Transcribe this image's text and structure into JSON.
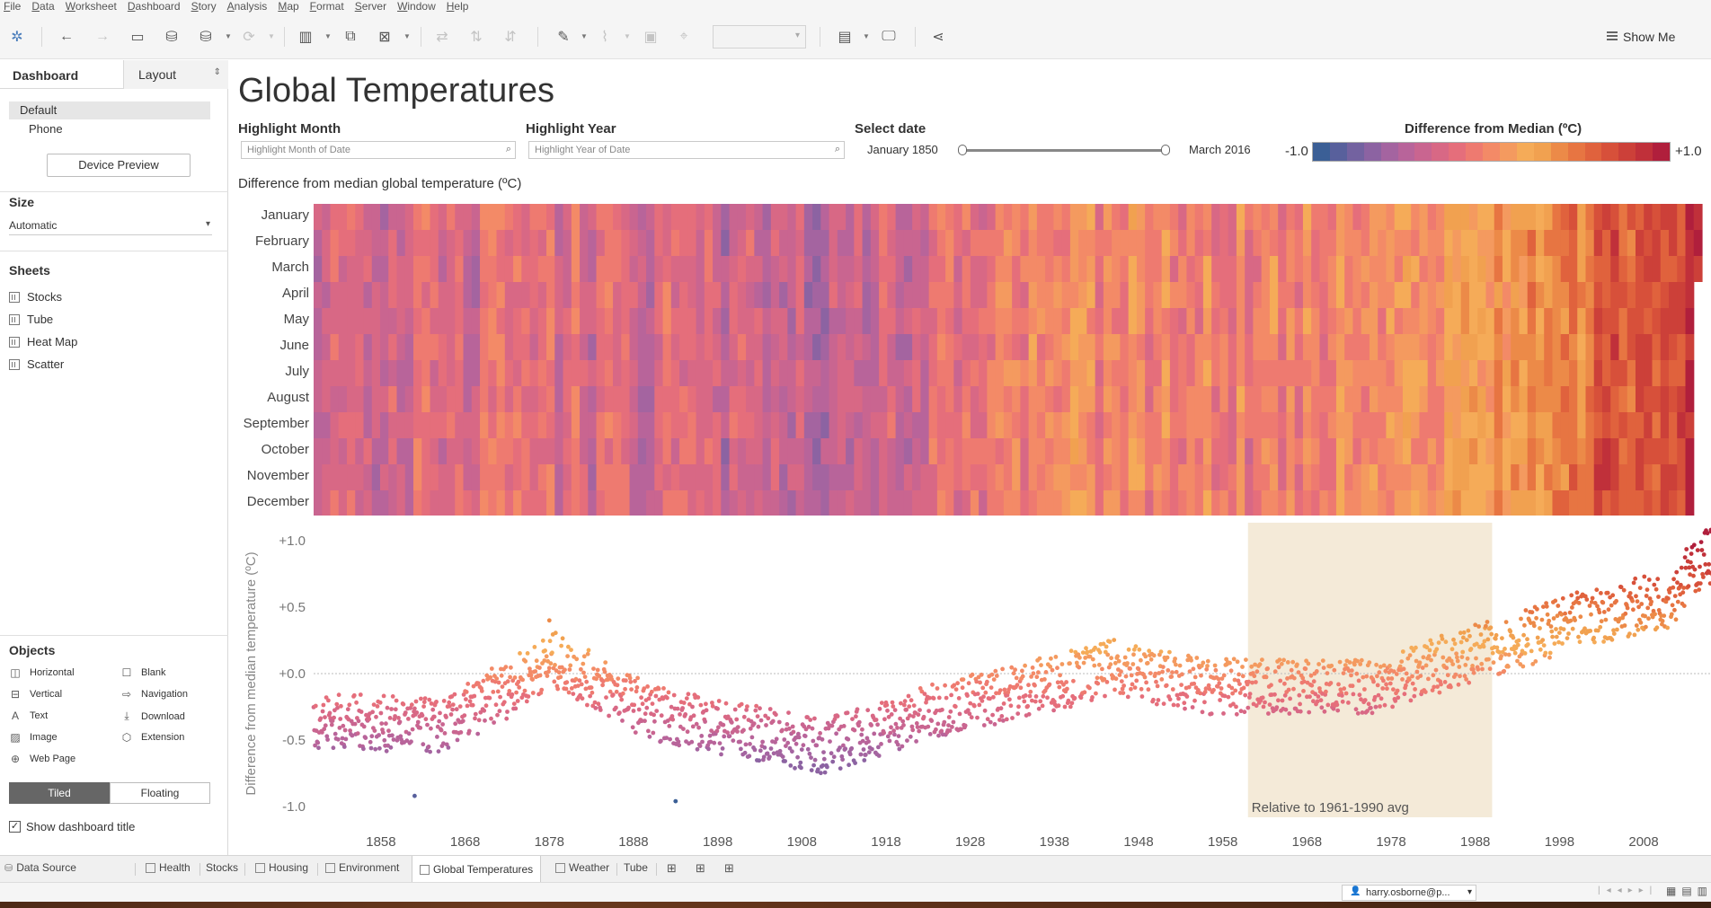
{
  "menu": [
    "File",
    "Data",
    "Worksheet",
    "Dashboard",
    "Story",
    "Analysis",
    "Map",
    "Format",
    "Server",
    "Window",
    "Help"
  ],
  "toolbar": {
    "show_me_label": "Show Me",
    "icons": [
      "tableau-logo-icon",
      "undo-icon",
      "redo-icon",
      "save-icon",
      "new-data-source-icon",
      "pause-updates-icon",
      "refresh-icon",
      "new-worksheet-icon",
      "duplicate-sheet-icon",
      "clear-sheet-icon",
      "swap-icon",
      "sort-ascending-icon",
      "sort-descending-icon",
      "highlight-icon",
      "group-icon",
      "labels-icon",
      "fix-axes-icon",
      "fit-icon",
      "presentation-icon",
      "share-icon"
    ]
  },
  "left_panel": {
    "tab_dashboard": "Dashboard",
    "tab_layout": "Layout",
    "device_default": "Default",
    "device_phone": "Phone",
    "device_preview": "Device Preview",
    "size_header": "Size",
    "size_value": "Automatic",
    "sheets_header": "Sheets",
    "sheets": [
      "Stocks",
      "Tube",
      "Heat Map",
      "Scatter"
    ],
    "objects_header": "Objects",
    "objects": [
      "Horizontal",
      "Blank",
      "Vertical",
      "Navigation",
      "Text",
      "Download",
      "Image",
      "Extension",
      "Web Page"
    ],
    "tiled": "Tiled",
    "floating": "Floating",
    "show_title": "Show dashboard title",
    "check_mark": "✓"
  },
  "dashboard": {
    "title": "Global Temperatures",
    "filters": {
      "month_label": "Highlight Month",
      "month_placeholder": "Highlight Month of Date",
      "year_label": "Highlight Year",
      "year_placeholder": "Highlight Year of Date",
      "date_label": "Select date",
      "date_from": "January 1850",
      "date_to": "March 2016"
    },
    "legend": {
      "title": "Difference from Median (ºC)",
      "min": "-1.0",
      "max": "+1.0",
      "colors": [
        "#3b5f96",
        "#58609c",
        "#7362a0",
        "#8c63a2",
        "#a464a0",
        "#b8649a",
        "#c96590",
        "#d86885",
        "#e56e7b",
        "#ee7a70",
        "#f38a67",
        "#f49a5f",
        "#f5ab58",
        "#f1a150",
        "#ec8a48",
        "#e77542",
        "#e0623d",
        "#d7503a",
        "#cc4039",
        "#c0303a",
        "#b01f3c"
      ]
    }
  },
  "chart_data": [
    {
      "type": "heatmap",
      "title": "Difference from median global temperature (ºC)",
      "rows": [
        "January",
        "February",
        "March",
        "April",
        "May",
        "June",
        "July",
        "August",
        "September",
        "October",
        "November",
        "December"
      ],
      "x_range": [
        "January 1850",
        "March 2016"
      ],
      "value_range": [
        -1.0,
        1.0
      ],
      "trend": [
        {
          "year": 1850,
          "value": -0.3
        },
        {
          "year": 1880,
          "value": -0.25
        },
        {
          "year": 1910,
          "value": -0.45
        },
        {
          "year": 1940,
          "value": 0.0
        },
        {
          "year": 1970,
          "value": -0.1
        },
        {
          "year": 1990,
          "value": 0.2
        },
        {
          "year": 2016,
          "value": 0.9
        }
      ]
    },
    {
      "type": "scatter",
      "ylabel": "Difference from median temperature (ºC)",
      "yticks": [
        "+1.0",
        "+0.5",
        "+0.0",
        "-0.5",
        "-1.0"
      ],
      "ylim": [
        -1.0,
        1.0
      ],
      "xticks": [
        "1858",
        "1868",
        "1878",
        "1888",
        "1898",
        "1908",
        "1918",
        "1928",
        "1938",
        "1948",
        "1958",
        "1968",
        "1978",
        "1988",
        "1998",
        "2008"
      ],
      "xlim": [
        1850,
        2016
      ],
      "reference_band": {
        "from": 1961,
        "to": 1990,
        "label": "Relative to 1961-1990 avg"
      },
      "trend": [
        {
          "year": 1850,
          "value": -0.35
        },
        {
          "year": 1865,
          "value": -0.4
        },
        {
          "year": 1878,
          "value": 0.1
        },
        {
          "year": 1890,
          "value": -0.3
        },
        {
          "year": 1910,
          "value": -0.55
        },
        {
          "year": 1925,
          "value": -0.25
        },
        {
          "year": 1945,
          "value": 0.05
        },
        {
          "year": 1955,
          "value": -0.1
        },
        {
          "year": 1975,
          "value": -0.1
        },
        {
          "year": 1990,
          "value": 0.2
        },
        {
          "year": 2000,
          "value": 0.4
        },
        {
          "year": 2010,
          "value": 0.55
        },
        {
          "year": 2016,
          "value": 0.95
        }
      ],
      "highlights": [
        {
          "year": 1878,
          "value": 0.4
        },
        {
          "year": 1862,
          "value": -0.92
        },
        {
          "year": 1893,
          "value": -0.96
        },
        {
          "year": 2016,
          "value": 1.07
        }
      ]
    }
  ],
  "tabs": {
    "data_source": "Data Source",
    "sheets": [
      "Health",
      "Stocks",
      "Housing",
      "Environment",
      "Global Temperatures",
      "Weather",
      "Tube"
    ],
    "active": "Global Temperatures"
  },
  "status": {
    "user": "harry.osborne@p..."
  }
}
